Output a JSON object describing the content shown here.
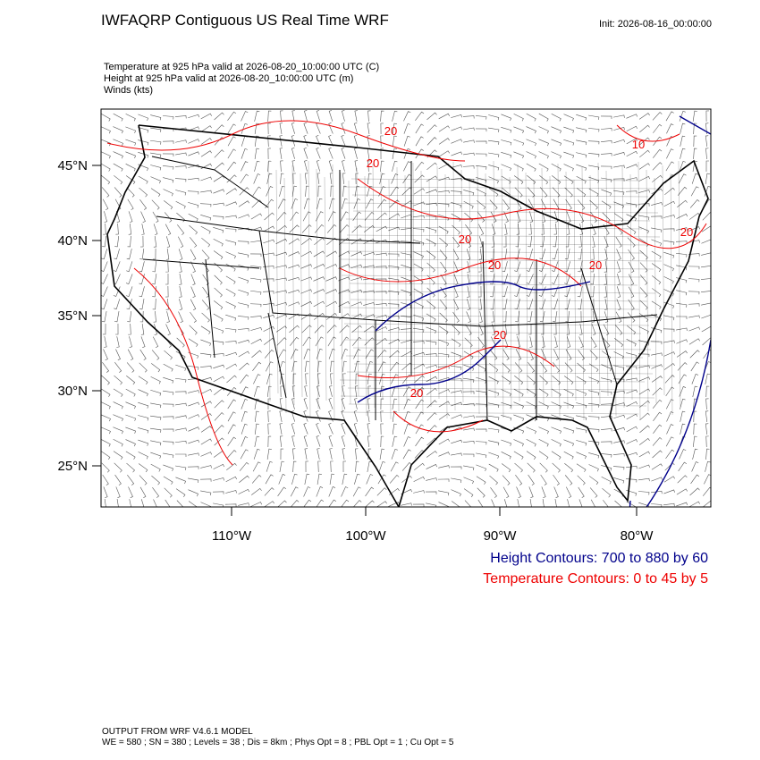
{
  "header": {
    "title": "IWFAQRP Contiguous US Real Time WRF",
    "init": "Init: 2026-08-16_00:00:00",
    "fields": [
      "Temperature at 925 hPa valid at 2026-08-20_10:00:00 UTC   (C)",
      "Height at 925 hPa valid at 2026-08-20_10:00:00 UTC   (m)",
      "Winds   (kts)"
    ]
  },
  "map": {
    "lat_labels": [
      "45°N",
      "40°N",
      "35°N",
      "30°N",
      "25°N"
    ],
    "lon_labels": [
      "110°W",
      "100°W",
      "90°W",
      "80°W"
    ],
    "contour_labels": [
      "20",
      "10",
      "20",
      "20",
      "20",
      "20",
      "20",
      "20",
      "20"
    ]
  },
  "legend": {
    "height": "Height Contours: 700 to 880 by 60",
    "temperature": "Temperature Contours: 0 to 45 by 5"
  },
  "footer": [
    "OUTPUT FROM WRF V4.6.1 MODEL",
    "WE = 580 ; SN = 380 ; Levels = 38 ; Dis = 8km ; Phys Opt = 8 ; PBL Opt = 1 ; Cu Opt = 5"
  ]
}
